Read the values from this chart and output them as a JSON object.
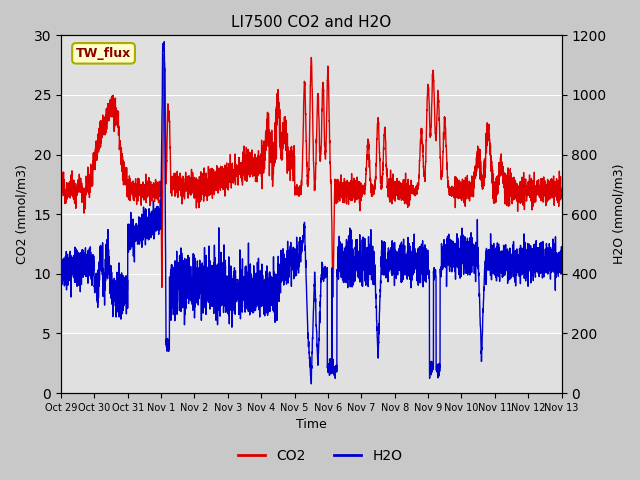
{
  "title": "LI7500 CO2 and H2O",
  "xlabel": "Time",
  "ylabel_left": "CO2 (mmol/m3)",
  "ylabel_right": "H2O (mmol/m3)",
  "ylim_left": [
    0,
    30
  ],
  "ylim_right": [
    0,
    1200
  ],
  "xtick_labels": [
    "Oct 29",
    "Oct 30",
    "Oct 31",
    "Nov 1",
    "Nov 2",
    "Nov 3",
    "Nov 4",
    "Nov 5",
    "Nov 6",
    "Nov 7",
    "Nov 8",
    "Nov 9",
    "Nov 10",
    "Nov 11",
    "Nov 12",
    "Nov 13"
  ],
  "yticks_left": [
    0,
    5,
    10,
    15,
    20,
    25,
    30
  ],
  "yticks_right": [
    0,
    200,
    400,
    600,
    800,
    1000,
    1200
  ],
  "co2_color": "#dd0000",
  "h2o_color": "#0000cc",
  "fig_bg_color": "#c8c8c8",
  "plot_bg_color": "#e0e0e0",
  "band_color": "#d0d0d0",
  "annotation_text": "TW_flux",
  "annotation_bg": "#ffffcc",
  "annotation_border": "#aaaa00",
  "linewidth": 1.0,
  "grid_color": "#ffffff",
  "figsize": [
    6.4,
    4.8
  ],
  "dpi": 100
}
